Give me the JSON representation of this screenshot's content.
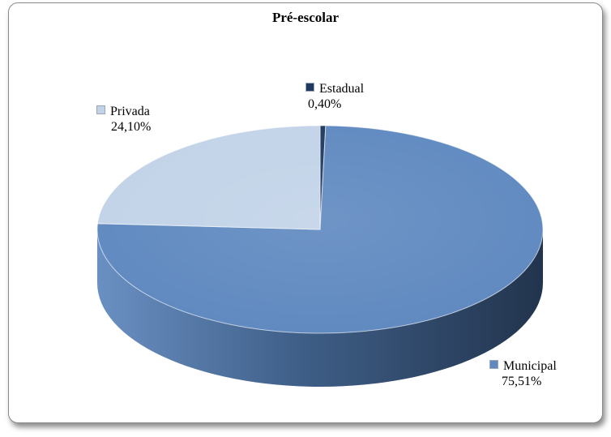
{
  "chart_data": {
    "type": "pie",
    "title": "Pré-escolar",
    "style": "3d",
    "slices": [
      {
        "name": "Estadual",
        "value": 0.4,
        "label": "0,40%",
        "color": "#1f3a5f",
        "side_color": "#13253d"
      },
      {
        "name": "Municipal",
        "value": 75.51,
        "label": "75,51%",
        "color": "#5f89c0",
        "side_color": "#3b5a82"
      },
      {
        "name": "Privada",
        "value": 24.1,
        "label": "24,10%",
        "color": "#c2d3e8",
        "side_color": "#8fa3bd"
      }
    ]
  }
}
